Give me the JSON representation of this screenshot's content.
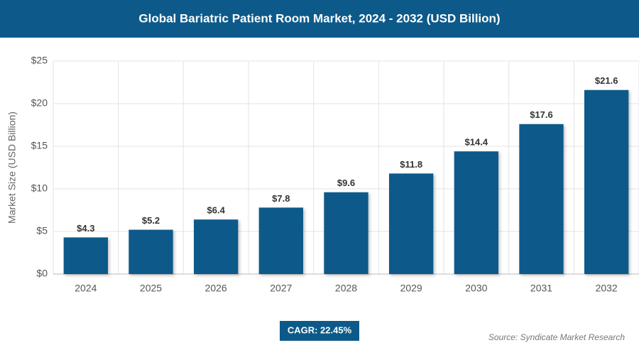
{
  "chart_data": {
    "type": "bar",
    "title": "Global Bariatric Patient Room Market, 2024 - 2032 (USD Billion)",
    "ylabel": "Market Size (USD Billion)",
    "categories": [
      "2024",
      "2025",
      "2026",
      "2027",
      "2028",
      "2029",
      "2030",
      "2031",
      "2032"
    ],
    "values": [
      4.3,
      5.2,
      6.4,
      7.8,
      9.6,
      11.8,
      14.4,
      17.6,
      21.6
    ],
    "value_labels": [
      "$4.3",
      "$5.2",
      "$6.4",
      "$7.8",
      "$9.6",
      "$11.8",
      "$14.4",
      "$17.6",
      "$21.6"
    ],
    "color": "#0d5a8a",
    "ylim": [
      0,
      25
    ],
    "yticks": [
      {
        "value": 0,
        "label": "$0"
      },
      {
        "value": 5,
        "label": "$5"
      },
      {
        "value": 10,
        "label": "$10"
      },
      {
        "value": 15,
        "label": "$15"
      },
      {
        "value": 20,
        "label": "$20"
      },
      {
        "value": 25,
        "label": "$25"
      }
    ],
    "grid": true,
    "annotation": "CAGR: 22.45%",
    "source": "Source: Syndicate Market Research"
  }
}
